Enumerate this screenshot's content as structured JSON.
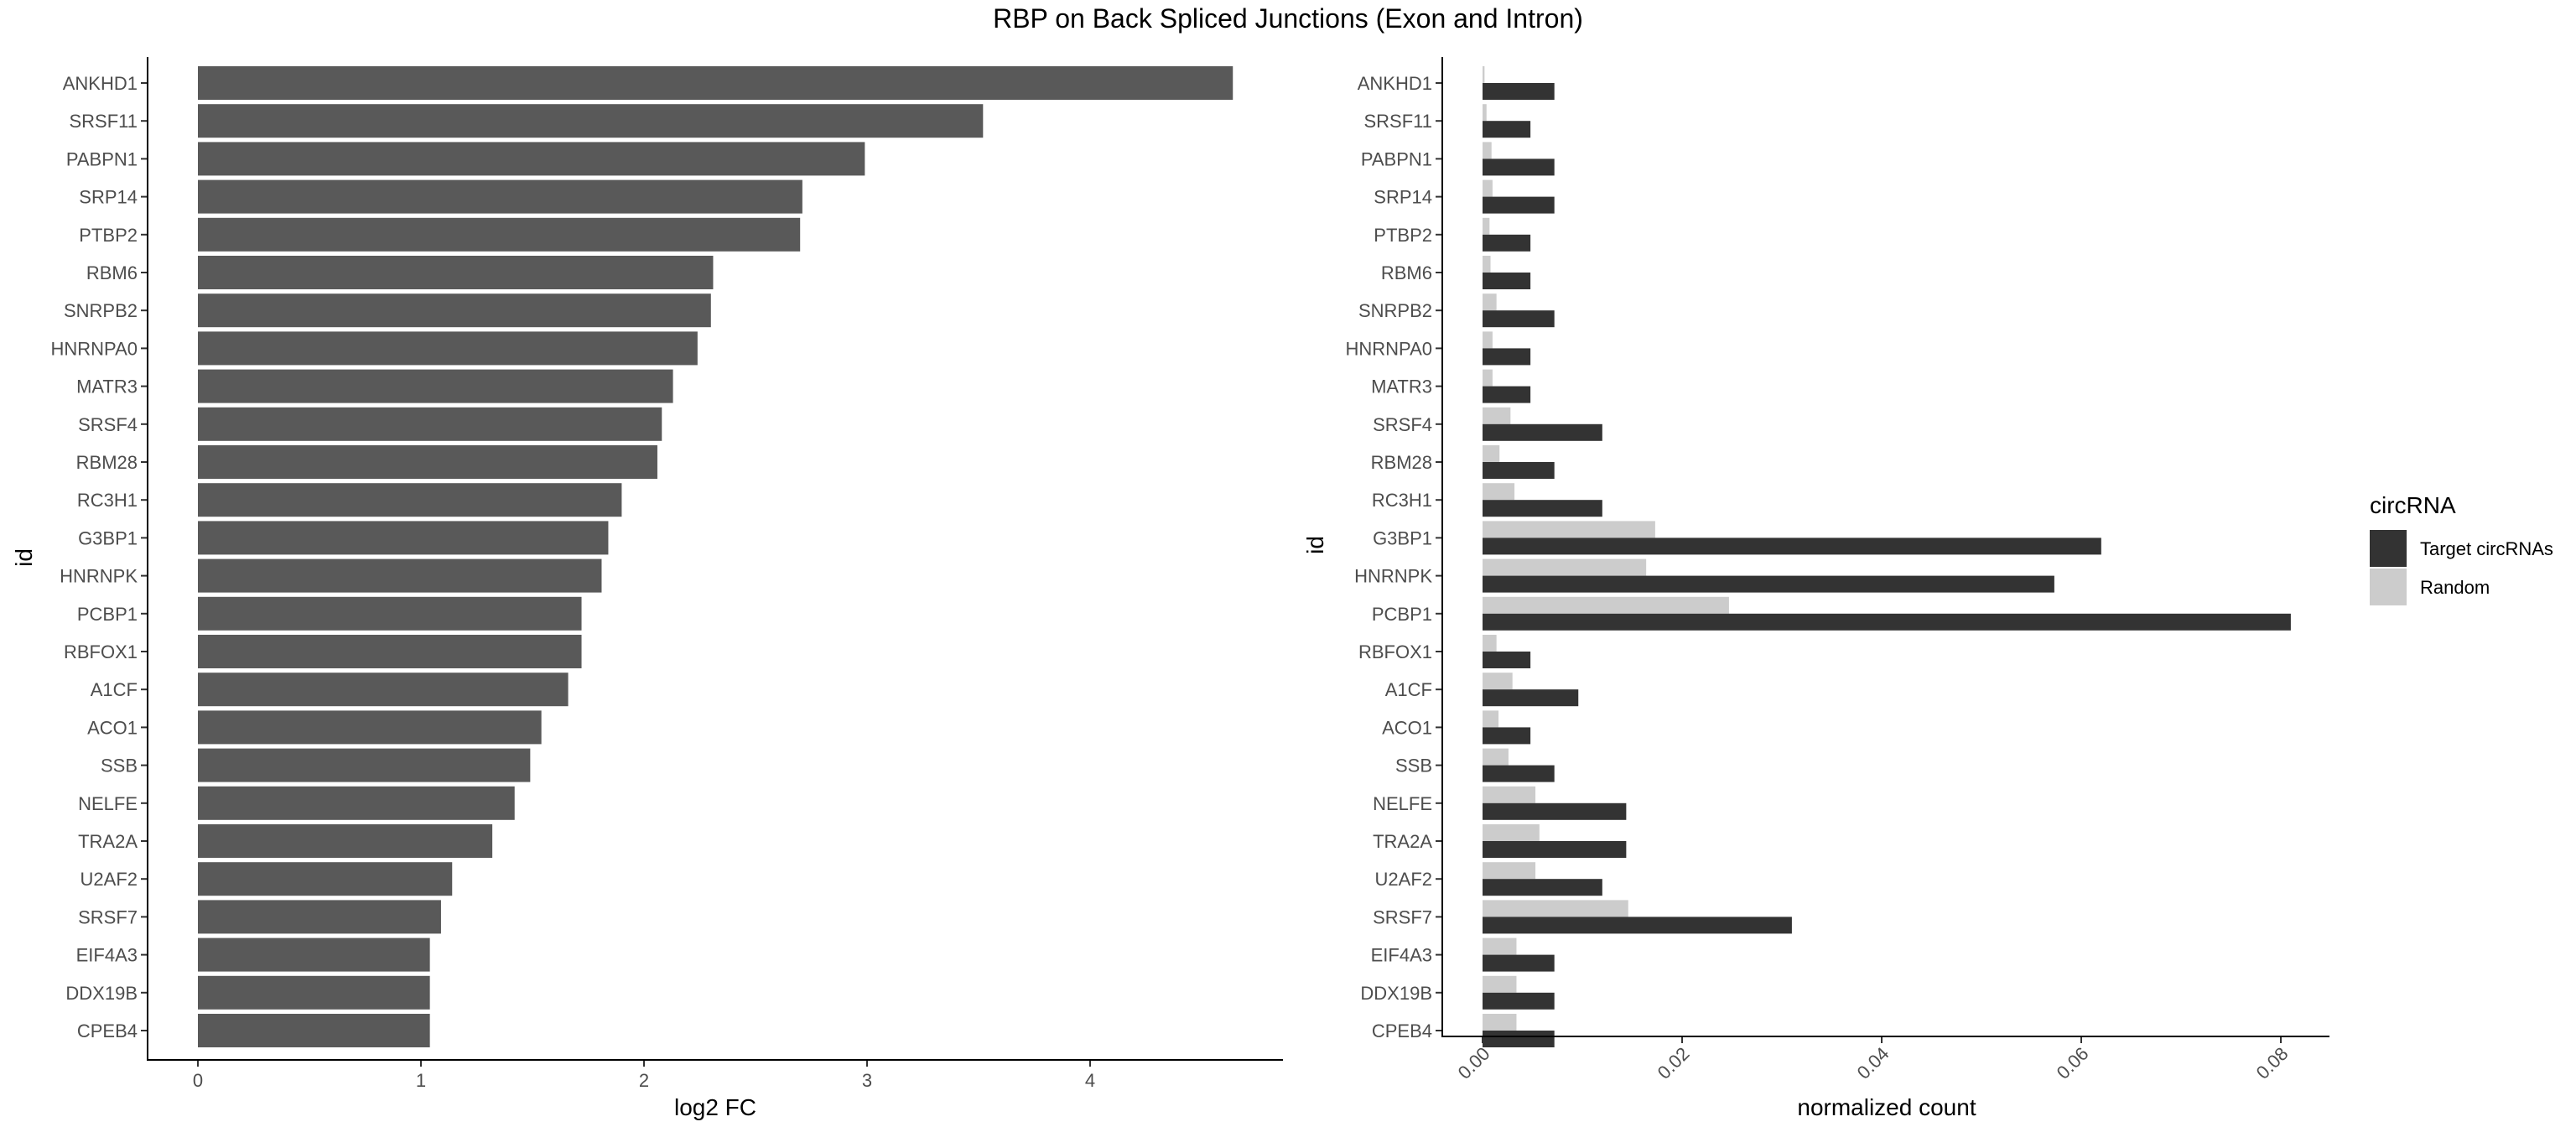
{
  "title": "RBP on Back Spliced Junctions (Exon and Intron)",
  "colors": {
    "left_bar": "#595959",
    "target": "#333333",
    "random": "#cccccc",
    "axis": "#000000",
    "tick_text": "#4d4d4d"
  },
  "chart_data": [
    {
      "type": "bar",
      "orientation": "horizontal",
      "xlabel": "log2 FC",
      "ylabel": "id",
      "xlim": [
        -0.23,
        4.9
      ],
      "xticks": [
        0,
        1,
        2,
        3,
        4
      ],
      "grid": false,
      "categories": [
        "ANKHD1",
        "SRSF11",
        "PABPN1",
        "SRP14",
        "PTBP2",
        "RBM6",
        "SNRPB2",
        "HNRNPA0",
        "MATR3",
        "SRSF4",
        "RBM28",
        "RC3H1",
        "G3BP1",
        "HNRNPK",
        "PCBP1",
        "RBFOX1",
        "A1CF",
        "ACO1",
        "SSB",
        "NELFE",
        "TRA2A",
        "U2AF2",
        "SRSF7",
        "EIF4A3",
        "DDX19B",
        "CPEB4"
      ],
      "values": [
        4.64,
        3.52,
        2.99,
        2.71,
        2.7,
        2.31,
        2.3,
        2.24,
        2.13,
        2.08,
        2.06,
        1.9,
        1.84,
        1.81,
        1.72,
        1.72,
        1.66,
        1.54,
        1.49,
        1.42,
        1.32,
        1.14,
        1.09,
        1.04,
        1.04,
        1.04
      ]
    },
    {
      "type": "bar",
      "orientation": "horizontal",
      "grouped": true,
      "xlabel": "normalized count",
      "ylabel": "id",
      "xlim": [
        -0.004,
        0.085
      ],
      "xticks": [
        0.0,
        0.02,
        0.04,
        0.06,
        0.08
      ],
      "xtick_labels": [
        "0.00",
        "0.02",
        "0.04",
        "0.06",
        "0.08"
      ],
      "grid": false,
      "legend": {
        "title": "circRNA",
        "position": "right"
      },
      "categories": [
        "ANKHD1",
        "SRSF11",
        "PABPN1",
        "SRP14",
        "PTBP2",
        "RBM6",
        "SNRPB2",
        "HNRNPA0",
        "MATR3",
        "SRSF4",
        "RBM28",
        "RC3H1",
        "G3BP1",
        "HNRNPK",
        "PCBP1",
        "RBFOX1",
        "A1CF",
        "ACO1",
        "SSB",
        "NELFE",
        "TRA2A",
        "U2AF2",
        "SRSF7",
        "EIF4A3",
        "DDX19B",
        "CPEB4"
      ],
      "series": [
        {
          "name": "Target circRNAs",
          "values": [
            0.0072,
            0.0048,
            0.0072,
            0.0072,
            0.0048,
            0.0048,
            0.0072,
            0.0048,
            0.0048,
            0.012,
            0.0072,
            0.012,
            0.062,
            0.0573,
            0.081,
            0.0048,
            0.0096,
            0.0048,
            0.0072,
            0.0144,
            0.0144,
            0.012,
            0.031,
            0.0072,
            0.0072,
            0.0072
          ]
        },
        {
          "name": "Random",
          "values": [
            0.0002,
            0.0004,
            0.0009,
            0.001,
            0.0007,
            0.0008,
            0.0014,
            0.001,
            0.001,
            0.0028,
            0.0017,
            0.0032,
            0.0173,
            0.0164,
            0.0247,
            0.0014,
            0.003,
            0.0016,
            0.0026,
            0.0053,
            0.0057,
            0.0053,
            0.0146,
            0.0034,
            0.0034,
            0.0034
          ]
        }
      ]
    }
  ]
}
